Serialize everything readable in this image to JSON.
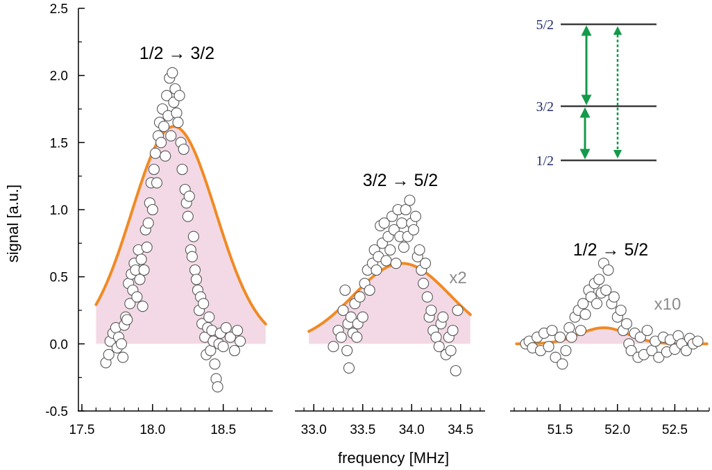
{
  "chart_data": {
    "type": "scatter",
    "ylabel": "signal [a.u.]",
    "xlabel": "frequency [MHz]",
    "ylim": [
      -0.5,
      2.5
    ],
    "yticks": [
      "-0.5",
      "0.0",
      "0.5",
      "1.0",
      "1.5",
      "2.0",
      "2.5"
    ],
    "colors": {
      "points_edge": "#555555",
      "points_fill": "#ffffff",
      "fit_line": "#f08a24",
      "fill": "#f3d9e5",
      "arrows": "#139a4a",
      "levels": "#1f2a6b"
    },
    "panels": [
      {
        "title": "1/2 → 3/2",
        "multiplier": "",
        "xlim": [
          17.5,
          18.85
        ],
        "xticks": [
          "17.5",
          "18.0",
          "18.5"
        ],
        "fit": {
          "center": 18.15,
          "amplitude": 1.62,
          "half_width": 0.35,
          "span": [
            17.6,
            18.8
          ]
        },
        "points": [
          [
            17.67,
            -0.14
          ],
          [
            17.69,
            -0.08
          ],
          [
            17.7,
            0.02
          ],
          [
            17.72,
            0.08
          ],
          [
            17.74,
            0.12
          ],
          [
            17.75,
            -0.03
          ],
          [
            17.76,
            0.05
          ],
          [
            17.78,
            0.0
          ],
          [
            17.79,
            -0.1
          ],
          [
            17.8,
            0.14
          ],
          [
            17.81,
            0.2
          ],
          [
            17.82,
            0.18
          ],
          [
            17.83,
            0.45
          ],
          [
            17.84,
            0.3
          ],
          [
            17.85,
            0.52
          ],
          [
            17.86,
            0.4
          ],
          [
            17.87,
            0.6
          ],
          [
            17.88,
            0.55
          ],
          [
            17.89,
            0.35
          ],
          [
            17.9,
            0.7
          ],
          [
            17.91,
            0.48
          ],
          [
            17.92,
            0.63
          ],
          [
            17.93,
            0.28
          ],
          [
            17.94,
            0.55
          ],
          [
            17.95,
            0.85
          ],
          [
            17.96,
            0.72
          ],
          [
            17.97,
            0.9
          ],
          [
            17.98,
            1.05
          ],
          [
            17.99,
            1.2
          ],
          [
            18.0,
            1.0
          ],
          [
            18.01,
            1.3
          ],
          [
            18.02,
            1.42
          ],
          [
            18.03,
            1.2
          ],
          [
            18.04,
            1.55
          ],
          [
            18.05,
            1.65
          ],
          [
            18.06,
            1.5
          ],
          [
            18.07,
            1.75
          ],
          [
            18.08,
            1.62
          ],
          [
            18.09,
            1.4
          ],
          [
            18.1,
            1.85
          ],
          [
            18.11,
            1.7
          ],
          [
            18.12,
            1.98
          ],
          [
            18.13,
            1.55
          ],
          [
            18.14,
            2.02
          ],
          [
            18.15,
            1.8
          ],
          [
            18.16,
            1.9
          ],
          [
            18.17,
            1.72
          ],
          [
            18.18,
            1.65
          ],
          [
            18.19,
            1.85
          ],
          [
            18.2,
            1.5
          ],
          [
            18.21,
            1.3
          ],
          [
            18.22,
            1.45
          ],
          [
            18.23,
            1.15
          ],
          [
            18.24,
            1.05
          ],
          [
            18.25,
            0.95
          ],
          [
            18.26,
            1.1
          ],
          [
            18.27,
            0.7
          ],
          [
            18.28,
            0.65
          ],
          [
            18.29,
            0.8
          ],
          [
            18.3,
            0.55
          ],
          [
            18.31,
            0.48
          ],
          [
            18.32,
            0.4
          ],
          [
            18.33,
            0.25
          ],
          [
            18.34,
            0.35
          ],
          [
            18.35,
            0.15
          ],
          [
            18.36,
            0.3
          ],
          [
            18.37,
            0.05
          ],
          [
            18.38,
            -0.08
          ],
          [
            18.39,
            0.12
          ],
          [
            18.4,
            0.2
          ],
          [
            18.41,
            -0.05
          ],
          [
            18.42,
            0.1
          ],
          [
            18.43,
            0.02
          ],
          [
            18.44,
            -0.15
          ],
          [
            18.45,
            -0.26
          ],
          [
            18.46,
            -0.32
          ],
          [
            18.47,
            0.0
          ],
          [
            18.48,
            0.08
          ],
          [
            18.5,
            -0.02
          ],
          [
            18.52,
            0.12
          ],
          [
            18.55,
            0.05
          ],
          [
            18.58,
            -0.05
          ],
          [
            18.6,
            0.1
          ],
          [
            18.62,
            0.02
          ]
        ]
      },
      {
        "title": "3/2 → 5/2",
        "multiplier": "x2",
        "xlim": [
          32.85,
          34.75
        ],
        "xticks": [
          "33.0",
          "33.5",
          "34.0",
          "34.5"
        ],
        "fit": {
          "center": 33.9,
          "amplitude": 0.6,
          "half_width": 0.58,
          "span": [
            32.95,
            34.6
          ]
        },
        "points": [
          [
            33.2,
            -0.02
          ],
          [
            33.25,
            0.1
          ],
          [
            33.28,
            0.05
          ],
          [
            33.3,
            0.25
          ],
          [
            33.32,
            0.4
          ],
          [
            33.34,
            -0.05
          ],
          [
            33.35,
            0.15
          ],
          [
            33.36,
            -0.18
          ],
          [
            33.38,
            0.2
          ],
          [
            33.4,
            0.08
          ],
          [
            33.42,
            0.3
          ],
          [
            33.44,
            0.05
          ],
          [
            33.45,
            0.15
          ],
          [
            33.47,
            0.35
          ],
          [
            33.5,
            0.2
          ],
          [
            33.52,
            0.45
          ],
          [
            33.55,
            0.55
          ],
          [
            33.57,
            0.4
          ],
          [
            33.6,
            0.6
          ],
          [
            33.62,
            0.7
          ],
          [
            33.64,
            0.55
          ],
          [
            33.66,
            0.65
          ],
          [
            33.68,
            0.88
          ],
          [
            33.7,
            0.75
          ],
          [
            33.72,
            0.9
          ],
          [
            33.74,
            0.62
          ],
          [
            33.76,
            0.8
          ],
          [
            33.78,
            0.7
          ],
          [
            33.8,
            0.95
          ],
          [
            33.82,
            0.85
          ],
          [
            33.84,
            0.6
          ],
          [
            33.86,
            1.0
          ],
          [
            33.88,
            0.8
          ],
          [
            33.9,
            0.9
          ],
          [
            33.92,
            0.72
          ],
          [
            33.94,
            1.0
          ],
          [
            33.96,
            0.8
          ],
          [
            33.98,
            1.07
          ],
          [
            34.0,
            0.9
          ],
          [
            34.02,
            0.85
          ],
          [
            34.04,
            0.95
          ],
          [
            34.06,
            0.65
          ],
          [
            34.08,
            0.7
          ],
          [
            34.1,
            0.55
          ],
          [
            34.12,
            0.45
          ],
          [
            34.14,
            0.6
          ],
          [
            34.16,
            0.35
          ],
          [
            34.18,
            0.2
          ],
          [
            34.2,
            0.25
          ],
          [
            34.22,
            0.1
          ],
          [
            34.25,
            0.05
          ],
          [
            34.28,
            -0.02
          ],
          [
            34.3,
            0.15
          ],
          [
            34.32,
            0.2
          ],
          [
            34.35,
            -0.08
          ],
          [
            34.38,
            0.05
          ],
          [
            34.4,
            -0.05
          ],
          [
            34.42,
            0.1
          ],
          [
            34.45,
            -0.2
          ],
          [
            34.47,
            0.25
          ]
        ]
      },
      {
        "title": "1/2 → 5/2",
        "multiplier": "x10",
        "xlim": [
          51.1,
          52.8
        ],
        "xticks": [
          "51.5",
          "52.0",
          "52.5"
        ],
        "fit": {
          "center": 51.88,
          "amplitude": 0.12,
          "half_width": 0.25,
          "span": [
            51.12,
            52.78
          ]
        },
        "points": [
          [
            51.2,
            0.0
          ],
          [
            51.23,
            0.02
          ],
          [
            51.26,
            -0.03
          ],
          [
            51.3,
            0.05
          ],
          [
            51.33,
            -0.05
          ],
          [
            51.36,
            0.08
          ],
          [
            51.4,
            -0.02
          ],
          [
            51.43,
            0.1
          ],
          [
            51.46,
            -0.1
          ],
          [
            51.5,
            0.05
          ],
          [
            51.52,
            -0.15
          ],
          [
            51.55,
            -0.05
          ],
          [
            51.58,
            0.12
          ],
          [
            51.6,
            0.05
          ],
          [
            51.63,
            0.2
          ],
          [
            51.66,
            0.25
          ],
          [
            51.68,
            0.1
          ],
          [
            51.7,
            0.3
          ],
          [
            51.72,
            0.22
          ],
          [
            51.75,
            0.4
          ],
          [
            51.77,
            0.35
          ],
          [
            51.8,
            0.45
          ],
          [
            51.82,
            0.3
          ],
          [
            51.84,
            0.48
          ],
          [
            51.86,
            0.38
          ],
          [
            51.88,
            0.6
          ],
          [
            51.9,
            0.4
          ],
          [
            51.92,
            0.55
          ],
          [
            51.95,
            0.3
          ],
          [
            51.97,
            0.35
          ],
          [
            52.0,
            0.2
          ],
          [
            52.03,
            0.25
          ],
          [
            52.05,
            0.1
          ],
          [
            52.08,
            0.15
          ],
          [
            52.1,
            0.0
          ],
          [
            52.12,
            -0.05
          ],
          [
            52.15,
            0.08
          ],
          [
            52.18,
            -0.1
          ],
          [
            52.2,
            0.05
          ],
          [
            52.23,
            -0.08
          ],
          [
            52.26,
            0.1
          ],
          [
            52.3,
            -0.05
          ],
          [
            52.33,
            0.02
          ],
          [
            52.36,
            -0.1
          ],
          [
            52.4,
            0.05
          ],
          [
            52.43,
            -0.06
          ],
          [
            52.46,
            0.03
          ],
          [
            52.5,
            -0.04
          ],
          [
            52.53,
            0.06
          ],
          [
            52.56,
            0.0
          ],
          [
            52.6,
            -0.05
          ],
          [
            52.63,
            0.04
          ],
          [
            52.66,
            0.0
          ],
          [
            52.7,
            0.02
          ]
        ]
      }
    ],
    "energy_levels": {
      "labels": [
        "5/2",
        "3/2",
        "1/2"
      ],
      "transitions": [
        {
          "from": "1/2",
          "to": "3/2",
          "style": "solid"
        },
        {
          "from": "3/2",
          "to": "5/2",
          "style": "solid"
        },
        {
          "from": "1/2",
          "to": "5/2",
          "style": "dashed"
        }
      ]
    }
  }
}
